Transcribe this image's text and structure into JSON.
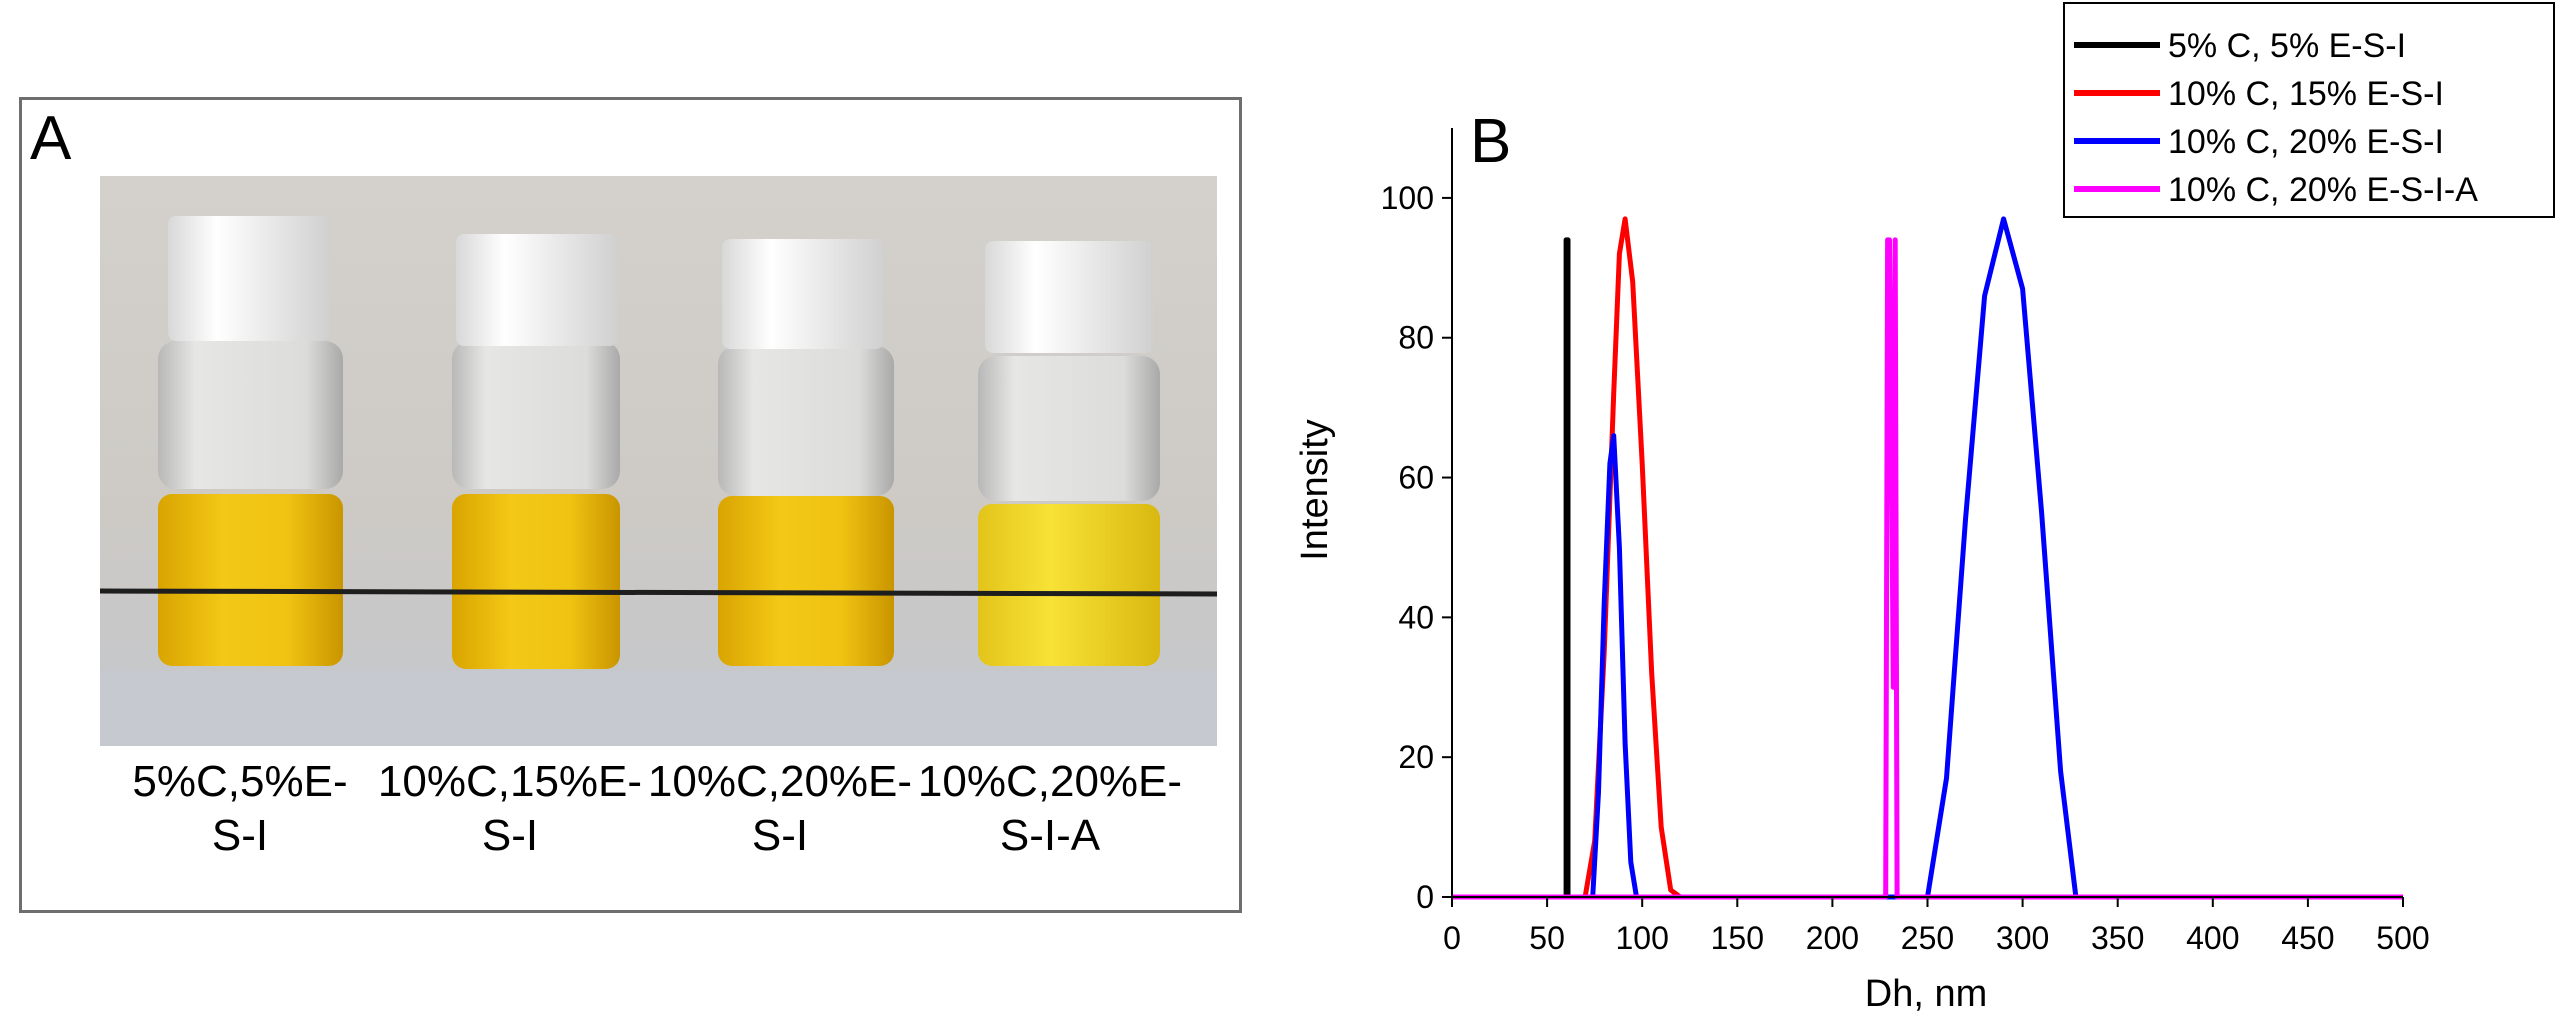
{
  "panel_a": {
    "letter": "A",
    "photo_name": "vial-photo",
    "vial_labels": [
      "5%C,5%E-\nS-I",
      "10%C,15%E-\nS-I",
      "10%C,20%E-\nS-I",
      "10%C,20%E-\nS-I-A"
    ]
  },
  "colors": {
    "black": "#000000",
    "red": "#ff0000",
    "blue": "#0000ff",
    "magenta": "#ff00ff",
    "liquid": "#f1c40f"
  },
  "chart_data": {
    "type": "line",
    "panel_letter": "B",
    "xlabel": "Dh, nm",
    "ylabel": "Intensity",
    "xlim": [
      0,
      500
    ],
    "ylim": [
      0,
      110
    ],
    "xticks": [
      0,
      50,
      100,
      150,
      200,
      250,
      300,
      350,
      400,
      450,
      500
    ],
    "yticks": [
      0,
      20,
      40,
      60,
      80,
      100
    ],
    "legend_position": "top-right",
    "series": [
      {
        "name": "5% C, 5% E-S-I",
        "color": "#000000",
        "x": [
          60,
          60,
          61,
          61
        ],
        "y": [
          0,
          94,
          94,
          0
        ]
      },
      {
        "name": "10% C, 15% E-S-I",
        "color": "#ff0000",
        "x": [
          0,
          70,
          75,
          80,
          85,
          88,
          91,
          95,
          100,
          105,
          110,
          115,
          120,
          500
        ],
        "y": [
          0,
          0,
          8,
          35,
          72,
          92,
          97,
          88,
          62,
          32,
          10,
          1,
          0,
          0
        ]
      },
      {
        "name": "10% C, 20% E-S-I",
        "color": "#0000ff",
        "x": [
          0,
          74,
          77,
          80,
          83,
          85,
          88,
          91,
          94,
          97,
          100,
          250,
          260,
          270,
          280,
          290,
          300,
          310,
          320,
          328,
          500
        ],
        "y": [
          0,
          0,
          15,
          42,
          62,
          66,
          50,
          22,
          5,
          0,
          0,
          0,
          17,
          54,
          86,
          97,
          87,
          55,
          18,
          0,
          0
        ]
      },
      {
        "name": "10% C, 20% E-S-I-A",
        "color": "#ff00ff",
        "x": [
          0,
          228,
          229,
          230,
          231,
          232,
          233,
          234,
          500
        ],
        "y": [
          0,
          0,
          94,
          94,
          65,
          30,
          94,
          0,
          0
        ]
      }
    ]
  }
}
